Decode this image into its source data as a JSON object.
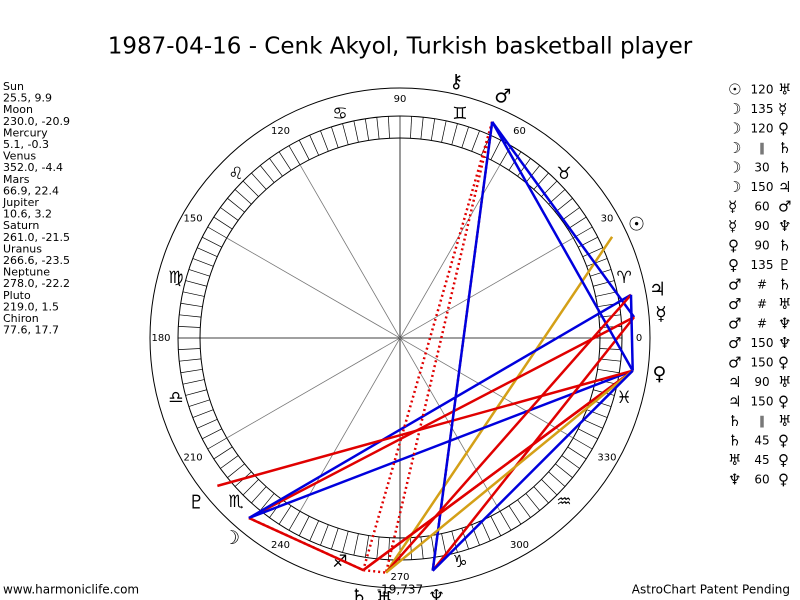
{
  "title": "1987-04-16 - Cenk Akyol, Turkish basketball player",
  "planets": [
    {
      "name": "Sun",
      "position": "25.5, 9.9",
      "glyph": "☉"
    },
    {
      "name": "Moon",
      "position": "230.0, -20.9",
      "glyph": "☽"
    },
    {
      "name": "Mercury",
      "position": "5.1, -0.3",
      "glyph": "☿"
    },
    {
      "name": "Venus",
      "position": "352.0, -4.4",
      "glyph": "♀"
    },
    {
      "name": "Mars",
      "position": "66.9, 22.4",
      "glyph": "♂"
    },
    {
      "name": "Jupiter",
      "position": "10.6, 3.2",
      "glyph": "♃"
    },
    {
      "name": "Saturn",
      "position": "261.0, -21.5",
      "glyph": "♄"
    },
    {
      "name": "Uranus",
      "position": "266.6, -23.5",
      "glyph": "♅"
    },
    {
      "name": "Neptune",
      "position": "278.0, -22.2",
      "glyph": "♆"
    },
    {
      "name": "Pluto",
      "position": "219.0, 1.5",
      "glyph": "♇"
    },
    {
      "name": "Chiron",
      "position": "77.6, 17.7",
      "glyph": "⚷"
    }
  ],
  "wheel": {
    "degree_labels": [
      0,
      30,
      60,
      90,
      120,
      150,
      180,
      210,
      240,
      270,
      300,
      330
    ],
    "zodiac": [
      "♈",
      "♉",
      "♊",
      "♋",
      "♌",
      "♍",
      "♎",
      "♏",
      "♐",
      "♑",
      "♒",
      "♓"
    ],
    "note": "-19,737"
  },
  "aspects": [
    {
      "from": "☉",
      "label": "120",
      "to": "♅",
      "color": "#d4a017"
    },
    {
      "from": "☽",
      "label": "135",
      "to": "☿",
      "color": "#e00000"
    },
    {
      "from": "☽",
      "label": "120",
      "to": "♀",
      "color": "#0000dd"
    },
    {
      "from": "☽",
      "label": "∥",
      "to": "♄",
      "color": "#e00000"
    },
    {
      "from": "☽",
      "label": "30",
      "to": "♄",
      "color": "#e00000"
    },
    {
      "from": "☽",
      "label": "150",
      "to": "♃",
      "color": "#0000dd"
    },
    {
      "from": "☿",
      "label": "60",
      "to": "♂",
      "color": "#0000dd"
    },
    {
      "from": "☿",
      "label": "90",
      "to": "♆",
      "color": "#e00000"
    },
    {
      "from": "♀",
      "label": "90",
      "to": "♄",
      "color": "#e00000"
    },
    {
      "from": "♀",
      "label": "135",
      "to": "♇",
      "color": "#e00000"
    },
    {
      "from": "♂",
      "label": "#",
      "to": "♄",
      "color": "#e00000"
    },
    {
      "from": "♂",
      "label": "#",
      "to": "♅",
      "color": "#e00000"
    },
    {
      "from": "♂",
      "label": "#",
      "to": "♆",
      "color": "#e00000"
    },
    {
      "from": "♂",
      "label": "150",
      "to": "♆",
      "color": "#0000dd"
    },
    {
      "from": "♂",
      "label": "150",
      "to": "♀",
      "color": "#0000dd"
    },
    {
      "from": "♃",
      "label": "90",
      "to": "♅",
      "color": "#e00000"
    },
    {
      "from": "♃",
      "label": "150",
      "to": "♀",
      "color": "#0000dd"
    },
    {
      "from": "♄",
      "label": "∥",
      "to": "♅",
      "color": "#e00000"
    },
    {
      "from": "♄",
      "label": "45",
      "to": "♀",
      "color": "#e00000"
    },
    {
      "from": "♅",
      "label": "45",
      "to": "♀",
      "color": "#d4a017"
    },
    {
      "from": "♆",
      "label": "60",
      "to": "♀",
      "color": "#0000dd"
    }
  ],
  "footer": {
    "left": "www.harmoniclife.com",
    "right": "AstroChart Patent Pending"
  }
}
